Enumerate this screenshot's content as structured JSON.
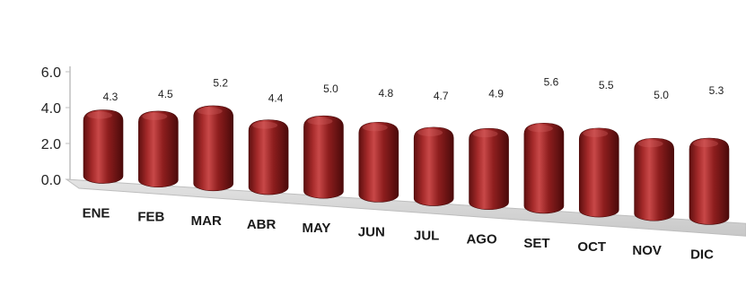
{
  "chart_data": {
    "type": "bar",
    "style": "3d-cylinder",
    "title": "",
    "xlabel": "",
    "ylabel": "",
    "ylim": [
      0,
      6
    ],
    "yticks": [
      "0.0",
      "2.0",
      "4.0",
      "6.0"
    ],
    "categories": [
      "ENE",
      "FEB",
      "MAR",
      "ABR",
      "MAY",
      "JUN",
      "JUL",
      "AGO",
      "SET",
      "OCT",
      "NOV",
      "DIC"
    ],
    "values": [
      4.3,
      4.5,
      5.2,
      4.4,
      5.0,
      4.8,
      4.7,
      4.9,
      5.6,
      5.5,
      5.0,
      5.3
    ],
    "data_labels": [
      "4.3",
      "4.5",
      "5.2",
      "4.4",
      "5.0",
      "4.8",
      "4.7",
      "4.9",
      "5.6",
      "5.5",
      "5.0",
      "5.3"
    ],
    "bar_color": "#8e1e1e",
    "grid": false,
    "legend": "none"
  }
}
